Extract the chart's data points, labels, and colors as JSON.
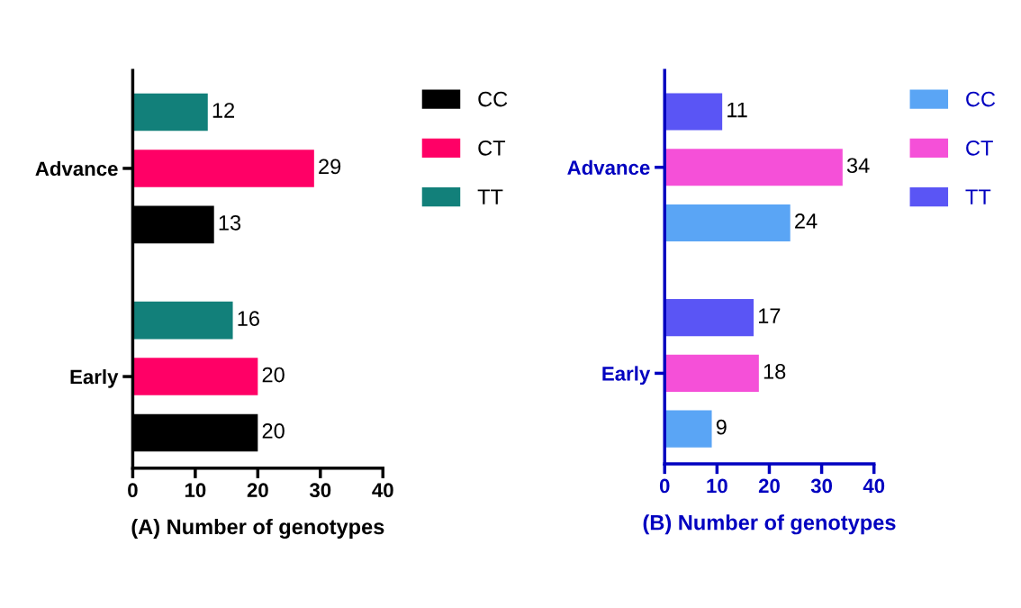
{
  "chart_data": [
    {
      "type": "bar",
      "orientation": "horizontal",
      "categories": [
        "Advance",
        "Early"
      ],
      "xlabel": "(A) Number of genotypes",
      "xlim": [
        0,
        40
      ],
      "xticks": [
        0,
        10,
        20,
        30,
        40
      ],
      "data_labels": true,
      "legend": "top right",
      "grid": false,
      "series": [
        {
          "name": "CC",
          "color": "#000000",
          "values": [
            13,
            20
          ]
        },
        {
          "name": "CT",
          "color": "#ff0066",
          "values": [
            29,
            20
          ]
        },
        {
          "name": "TT",
          "color": "#12807a",
          "values": [
            12,
            16
          ]
        }
      ]
    },
    {
      "type": "bar",
      "orientation": "horizontal",
      "categories": [
        "Advance",
        "Early"
      ],
      "xlabel": "(B) Number of genotypes",
      "xlim": [
        0,
        40
      ],
      "xticks": [
        0,
        10,
        20,
        30,
        40
      ],
      "data_labels": true,
      "legend": "top right",
      "grid": false,
      "series": [
        {
          "name": "CC",
          "color": "#5aa5f5",
          "values": [
            24,
            9
          ]
        },
        {
          "name": "CT",
          "color": "#f550d8",
          "values": [
            34,
            18
          ]
        },
        {
          "name": "TT",
          "color": "#5a55f5",
          "values": [
            11,
            17
          ]
        }
      ]
    }
  ]
}
